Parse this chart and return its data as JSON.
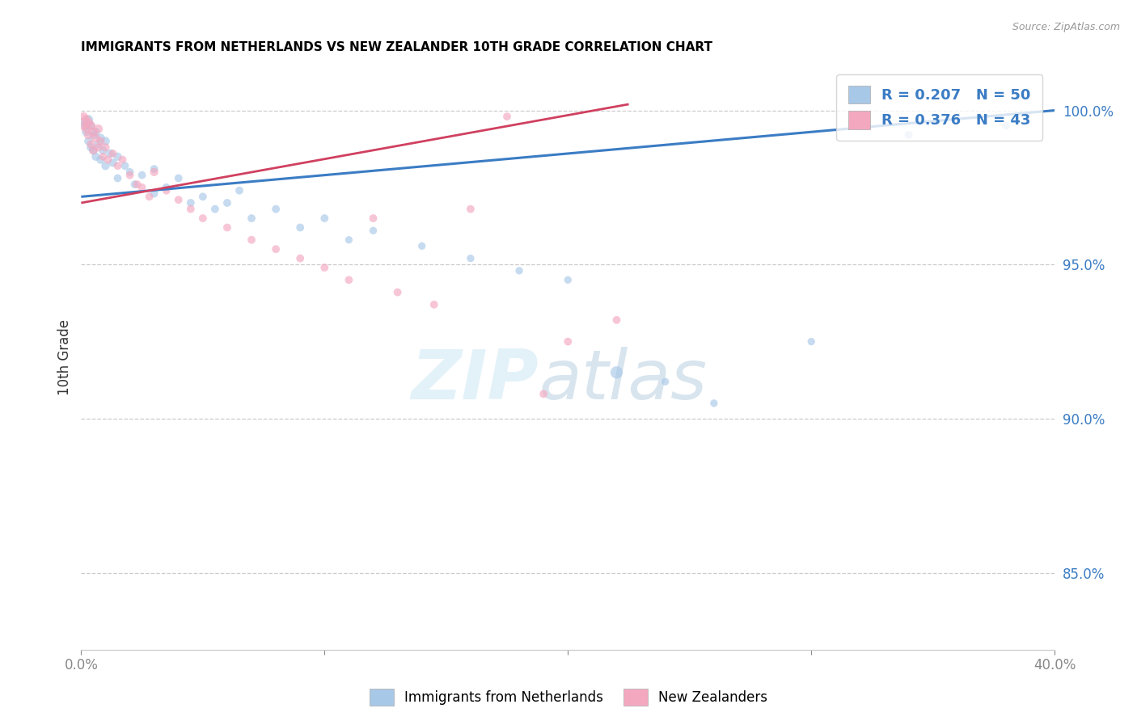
{
  "title": "IMMIGRANTS FROM NETHERLANDS VS NEW ZEALANDER 10TH GRADE CORRELATION CHART",
  "source": "Source: ZipAtlas.com",
  "ylabel": "10th Grade",
  "color_blue": "#A8C8E8",
  "color_pink": "#F4A8C0",
  "trendline_blue": "#3B7CC4",
  "trendline_pink": "#D04060",
  "legend_blue_r": "R = 0.207",
  "legend_blue_n": "N = 50",
  "legend_pink_r": "R = 0.376",
  "legend_pink_n": "N = 43",
  "xlim": [
    0.0,
    0.4
  ],
  "ylim": [
    82.5,
    101.5
  ],
  "ytick_vals": [
    85.0,
    90.0,
    95.0,
    100.0
  ],
  "xtick_vals": [
    0.0,
    0.1,
    0.2,
    0.3,
    0.4
  ],
  "blue_trendline_x": [
    0.0,
    0.4
  ],
  "blue_trendline_y": [
    97.2,
    100.0
  ],
  "pink_trendline_x": [
    0.0,
    0.225
  ],
  "pink_trendline_y": [
    97.0,
    100.2
  ],
  "blue_points": [
    [
      0.001,
      99.6
    ],
    [
      0.002,
      99.5
    ],
    [
      0.002,
      99.3
    ],
    [
      0.003,
      99.7
    ],
    [
      0.003,
      99.0
    ],
    [
      0.004,
      99.5
    ],
    [
      0.004,
      98.8
    ],
    [
      0.005,
      99.2
    ],
    [
      0.005,
      98.7
    ],
    [
      0.006,
      99.3
    ],
    [
      0.006,
      98.5
    ],
    [
      0.007,
      98.9
    ],
    [
      0.008,
      99.1
    ],
    [
      0.008,
      98.4
    ],
    [
      0.009,
      98.7
    ],
    [
      0.01,
      99.0
    ],
    [
      0.01,
      98.2
    ],
    [
      0.012,
      98.6
    ],
    [
      0.013,
      98.3
    ],
    [
      0.015,
      98.5
    ],
    [
      0.015,
      97.8
    ],
    [
      0.018,
      98.2
    ],
    [
      0.02,
      98.0
    ],
    [
      0.022,
      97.6
    ],
    [
      0.025,
      97.9
    ],
    [
      0.03,
      98.1
    ],
    [
      0.03,
      97.3
    ],
    [
      0.035,
      97.5
    ],
    [
      0.04,
      97.8
    ],
    [
      0.045,
      97.0
    ],
    [
      0.05,
      97.2
    ],
    [
      0.055,
      96.8
    ],
    [
      0.06,
      97.0
    ],
    [
      0.065,
      97.4
    ],
    [
      0.07,
      96.5
    ],
    [
      0.08,
      96.8
    ],
    [
      0.09,
      96.2
    ],
    [
      0.1,
      96.5
    ],
    [
      0.11,
      95.8
    ],
    [
      0.12,
      96.1
    ],
    [
      0.14,
      95.6
    ],
    [
      0.16,
      95.2
    ],
    [
      0.18,
      94.8
    ],
    [
      0.2,
      94.5
    ],
    [
      0.22,
      91.5
    ],
    [
      0.24,
      91.2
    ],
    [
      0.26,
      90.5
    ],
    [
      0.3,
      92.5
    ],
    [
      0.34,
      99.2
    ],
    [
      0.38,
      99.5
    ]
  ],
  "pink_points": [
    [
      0.001,
      99.8
    ],
    [
      0.001,
      99.5
    ],
    [
      0.002,
      99.7
    ],
    [
      0.002,
      99.4
    ],
    [
      0.003,
      99.6
    ],
    [
      0.003,
      99.2
    ],
    [
      0.004,
      99.5
    ],
    [
      0.004,
      98.9
    ],
    [
      0.005,
      99.3
    ],
    [
      0.005,
      98.7
    ],
    [
      0.006,
      99.1
    ],
    [
      0.007,
      98.8
    ],
    [
      0.007,
      99.4
    ],
    [
      0.008,
      99.0
    ],
    [
      0.009,
      98.5
    ],
    [
      0.01,
      98.8
    ],
    [
      0.011,
      98.4
    ],
    [
      0.013,
      98.6
    ],
    [
      0.015,
      98.2
    ],
    [
      0.017,
      98.4
    ],
    [
      0.02,
      97.9
    ],
    [
      0.023,
      97.6
    ],
    [
      0.025,
      97.5
    ],
    [
      0.028,
      97.2
    ],
    [
      0.03,
      98.0
    ],
    [
      0.035,
      97.4
    ],
    [
      0.04,
      97.1
    ],
    [
      0.045,
      96.8
    ],
    [
      0.05,
      96.5
    ],
    [
      0.06,
      96.2
    ],
    [
      0.07,
      95.8
    ],
    [
      0.08,
      95.5
    ],
    [
      0.09,
      95.2
    ],
    [
      0.1,
      94.9
    ],
    [
      0.11,
      94.5
    ],
    [
      0.12,
      96.5
    ],
    [
      0.13,
      94.1
    ],
    [
      0.145,
      93.7
    ],
    [
      0.16,
      96.8
    ],
    [
      0.175,
      99.8
    ],
    [
      0.19,
      90.8
    ],
    [
      0.2,
      92.5
    ],
    [
      0.22,
      93.2
    ]
  ],
  "blue_point_sizes": [
    60,
    60,
    55,
    70,
    55,
    60,
    55,
    60,
    55,
    60,
    55,
    55,
    60,
    55,
    55,
    60,
    55,
    55,
    55,
    55,
    50,
    50,
    50,
    50,
    50,
    50,
    50,
    50,
    50,
    50,
    50,
    50,
    50,
    50,
    50,
    50,
    50,
    50,
    45,
    45,
    45,
    45,
    45,
    45,
    120,
    45,
    45,
    45,
    50,
    50
  ],
  "pink_point_sizes": [
    60,
    60,
    70,
    60,
    70,
    60,
    65,
    55,
    65,
    55,
    60,
    55,
    65,
    55,
    50,
    55,
    50,
    50,
    50,
    50,
    50,
    50,
    50,
    50,
    55,
    50,
    50,
    50,
    50,
    50,
    50,
    50,
    50,
    50,
    50,
    50,
    50,
    50,
    50,
    50,
    50,
    50,
    50
  ]
}
